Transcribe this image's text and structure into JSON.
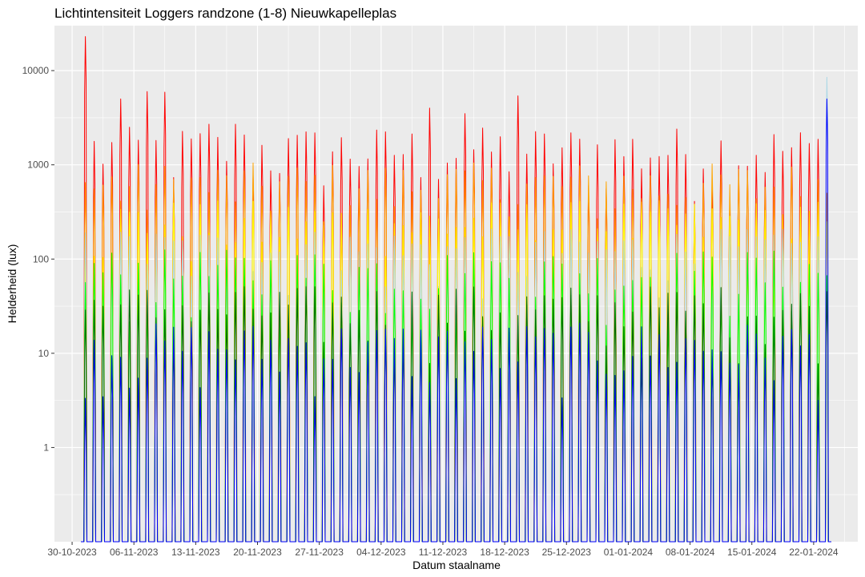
{
  "chart_data": {
    "type": "line",
    "title": "Lichtintensiteit Loggers randzone (1-8) Nieuwkapelleplas",
    "xlabel": "Datum staalname",
    "ylabel": "Helderheid (lux)",
    "y_scale": "log10",
    "ylim": [
      0.1,
      30000
    ],
    "xlim": [
      "2023-10-28",
      "2024-01-27"
    ],
    "grid": true,
    "legend": "none",
    "panel_background": "#ebebeb",
    "grid_color": "#ffffff",
    "x_ticks": [
      "30-10-2023",
      "06-11-2023",
      "13-11-2023",
      "20-11-2023",
      "27-11-2023",
      "04-12-2023",
      "11-12-2023",
      "18-12-2023",
      "25-12-2023",
      "01-01-2024",
      "08-01-2024",
      "15-01-2024",
      "22-01-2024"
    ],
    "y_ticks": [
      1,
      10,
      100,
      1000,
      10000
    ],
    "y_tick_labels": [
      "1",
      "10",
      "100",
      "1000",
      "10000"
    ],
    "date_range": [
      "2023-10-31",
      "2024-01-23"
    ],
    "series": [
      {
        "color": "#ff0000",
        "peaks": [
          {
            "x": "2023-10-31",
            "y": 23000
          },
          {
            "x": "2023-11-04",
            "y": 5000
          },
          {
            "x": "2023-11-07",
            "y": 6000
          },
          {
            "x": "2023-11-09",
            "y": 5900
          },
          {
            "x": "2023-11-14",
            "y": 2700
          },
          {
            "x": "2023-11-17",
            "y": 2700
          },
          {
            "x": "2023-11-23",
            "y": 1900
          },
          {
            "x": "2023-12-09",
            "y": 4000
          },
          {
            "x": "2023-12-13",
            "y": 3500
          },
          {
            "x": "2023-12-19",
            "y": 5400
          }
        ],
        "typical_daily_peak": 1200
      },
      {
        "color": "#ffa500",
        "typical_daily_peak": 500
      },
      {
        "color": "#ffff00",
        "typical_daily_peak": 200
      },
      {
        "color": "#add8e6",
        "peaks": [
          {
            "x": "2024-01-23",
            "y": 8500
          }
        ],
        "typical_daily_peak": 100
      },
      {
        "color": "#00ff00",
        "typical_daily_peak": 60
      },
      {
        "color": "#006400",
        "typical_daily_peak": 25
      },
      {
        "color": "#0000ff",
        "peaks": [
          {
            "x": "2024-01-23",
            "y": 5000
          }
        ],
        "typical_daily_peak": 10
      }
    ]
  }
}
